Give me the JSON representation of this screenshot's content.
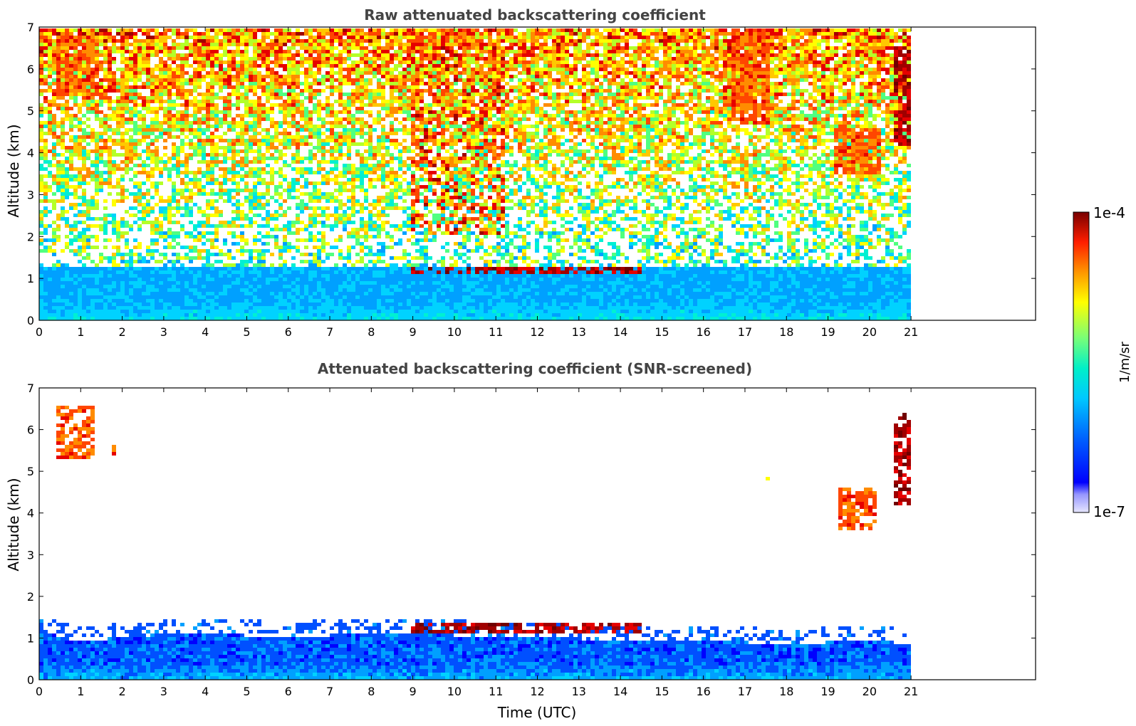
{
  "chart_data": [
    {
      "type": "heatmap",
      "title": "Raw attenuated backscattering coefficient",
      "xlabel": "",
      "ylabel": "Altitude (km)",
      "xlim": [
        0,
        24
      ],
      "ylim": [
        0,
        7
      ],
      "x_ticks": [
        "0",
        "1",
        "2",
        "3",
        "4",
        "5",
        "6",
        "7",
        "8",
        "9",
        "10",
        "11",
        "12",
        "13",
        "14",
        "15",
        "16",
        "17",
        "18",
        "19",
        "20",
        "21"
      ],
      "y_ticks": [
        "0",
        "1",
        "2",
        "3",
        "4",
        "5",
        "6",
        "7"
      ],
      "data_extent_hours": [
        0,
        21
      ],
      "screened": false,
      "features": [
        {
          "kind": "cloud",
          "t": [
            0.4,
            1.3
          ],
          "z": [
            5.3,
            6.9
          ],
          "level": "high"
        },
        {
          "kind": "cloud",
          "t": [
            1.7,
            1.9
          ],
          "z": [
            5.4,
            5.9
          ],
          "level": "high"
        },
        {
          "kind": "cloud_layer",
          "t": [
            9.0,
            14.5
          ],
          "z": [
            1.1,
            1.3
          ],
          "level": "max"
        },
        {
          "kind": "cloud",
          "t": [
            16.7,
            17.6
          ],
          "z": [
            4.7,
            7.0
          ],
          "level": "high"
        },
        {
          "kind": "cloud",
          "t": [
            19.1,
            20.3
          ],
          "z": [
            3.5,
            4.6
          ],
          "level": "high"
        },
        {
          "kind": "cloud",
          "t": [
            20.6,
            20.95
          ],
          "z": [
            4.2,
            6.5
          ],
          "level": "max"
        }
      ]
    },
    {
      "type": "heatmap",
      "title": "Attenuated backscattering coefficient (SNR-screened)",
      "xlabel": "Time (UTC)",
      "ylabel": "Altitude (km)",
      "xlim": [
        0,
        24
      ],
      "ylim": [
        0,
        7
      ],
      "x_ticks": [
        "0",
        "1",
        "2",
        "3",
        "4",
        "5",
        "6",
        "7",
        "8",
        "9",
        "10",
        "11",
        "12",
        "13",
        "14",
        "15",
        "16",
        "17",
        "18",
        "19",
        "20",
        "21"
      ],
      "y_ticks": [
        "0",
        "1",
        "2",
        "3",
        "4",
        "5",
        "6",
        "7"
      ],
      "data_extent_hours": [
        0,
        21
      ],
      "screened": true,
      "boundary_layer_top_km": [
        [
          0,
          1.2
        ],
        [
          1,
          0.9
        ],
        [
          3,
          1.1
        ],
        [
          6,
          1.05
        ],
        [
          9,
          1.1
        ],
        [
          12,
          1.0
        ],
        [
          15,
          0.95
        ],
        [
          17,
          0.9
        ],
        [
          18,
          0.85
        ],
        [
          20,
          0.95
        ],
        [
          21,
          0.85
        ]
      ],
      "features": [
        {
          "kind": "cloud",
          "t": [
            0.4,
            1.3
          ],
          "z": [
            5.3,
            6.6
          ],
          "level": "high"
        },
        {
          "kind": "cloud",
          "t": [
            1.8,
            1.9
          ],
          "z": [
            5.4,
            5.6
          ],
          "level": "high"
        },
        {
          "kind": "cloud_layer",
          "t": [
            9.0,
            14.5
          ],
          "z": [
            1.1,
            1.4
          ],
          "level": "max"
        },
        {
          "kind": "cloud",
          "t": [
            17.5,
            17.6
          ],
          "z": [
            4.8,
            5.0
          ],
          "level": "mid"
        },
        {
          "kind": "cloud",
          "t": [
            19.2,
            20.2
          ],
          "z": [
            3.6,
            4.6
          ],
          "level": "high"
        },
        {
          "kind": "cloud",
          "t": [
            20.6,
            20.95
          ],
          "z": [
            4.2,
            6.4
          ],
          "level": "max"
        }
      ]
    }
  ],
  "colorbar": {
    "label": "1/m/sr",
    "max_label": "1e-4",
    "min_label": "1e-7",
    "scale": "log",
    "colormap_stops": [
      "#e6e6ff",
      "#b4b4ff",
      "#9696ff",
      "#0000ff",
      "#0050ff",
      "#00a0ff",
      "#00d2ff",
      "#00f0d2",
      "#50ff80",
      "#b4ff28",
      "#ffff00",
      "#ffc800",
      "#ff8c00",
      "#ff4600",
      "#e60000",
      "#a00000",
      "#700000"
    ]
  }
}
